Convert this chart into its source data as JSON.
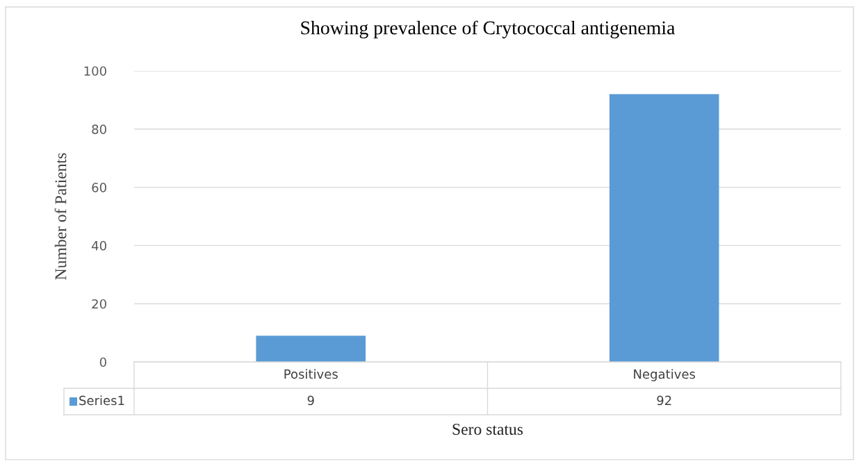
{
  "chart_data": {
    "type": "bar",
    "title": "Showing prevalence of Crytococcal antigenemia",
    "xlabel": "Sero status",
    "ylabel": "Number of Patients",
    "categories": [
      "Positives",
      "Negatives"
    ],
    "series": [
      {
        "name": "Series1",
        "color": "#5b9bd5",
        "values": [
          9,
          92
        ]
      }
    ],
    "ylim": [
      0,
      100
    ],
    "yticks": [
      0,
      20,
      40,
      60,
      80,
      100
    ],
    "grid": "y",
    "legend": "bottom",
    "data_labels": true
  }
}
